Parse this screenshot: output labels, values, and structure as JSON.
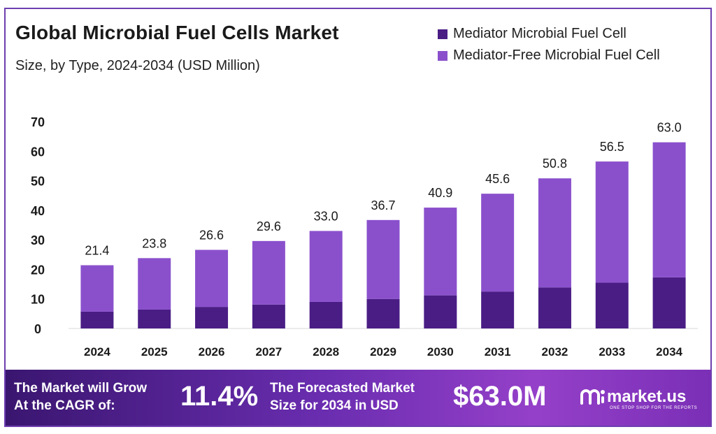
{
  "header": {
    "title": "Global Microbial Fuel Cells Market",
    "subtitle": "Size, by Type, 2024-2034 (USD Million)"
  },
  "legend": [
    {
      "label": "Mediator Microbial Fuel Cell",
      "color": "#4a1d85"
    },
    {
      "label": "Mediator-Free Microbial Fuel Cell",
      "color": "#8a50cc"
    }
  ],
  "chart_data": {
    "type": "bar",
    "stacked": true,
    "title": "Global Microbial Fuel Cells Market",
    "subtitle": "Size, by Type, 2024-2034 (USD Million)",
    "categories": [
      "2024",
      "2025",
      "2026",
      "2027",
      "2028",
      "2029",
      "2030",
      "2031",
      "2032",
      "2033",
      "2034"
    ],
    "series": [
      {
        "name": "Mediator Microbial Fuel Cell",
        "color": "#4a1d85",
        "values": [
          5.7,
          6.4,
          7.3,
          8.1,
          9.0,
          10.0,
          11.2,
          12.5,
          13.9,
          15.5,
          17.3
        ]
      },
      {
        "name": "Mediator-Free Microbial Fuel Cell",
        "color": "#8a50cc",
        "values": [
          15.7,
          17.4,
          19.3,
          21.5,
          24.0,
          26.7,
          29.7,
          33.1,
          36.9,
          41.0,
          45.7
        ]
      }
    ],
    "totals": [
      21.4,
      23.8,
      26.6,
      29.6,
      33.0,
      36.7,
      40.9,
      45.6,
      50.8,
      56.5,
      63.0
    ],
    "total_labels": [
      "21.4",
      "23.8",
      "26.6",
      "29.6",
      "33.0",
      "36.7",
      "40.9",
      "45.6",
      "50.8",
      "56.5",
      "63.0"
    ],
    "yticks": [
      "0",
      "10",
      "20",
      "30",
      "40",
      "50",
      "60",
      "70"
    ],
    "ylim": [
      0,
      70
    ],
    "grid": false,
    "legend_position": "top-right"
  },
  "footer": {
    "grow_text_line1": "The Market will Grow",
    "grow_text_line2": "At the CAGR of:",
    "cagr": "11.4%",
    "forecast_line1": "The Forecasted Market",
    "forecast_line2": "Size for 2034 in USD",
    "forecast_value": "$63.0M",
    "brand_name": "market.us",
    "brand_tagline": "ONE STOP SHOP FOR THE REPORTS"
  }
}
